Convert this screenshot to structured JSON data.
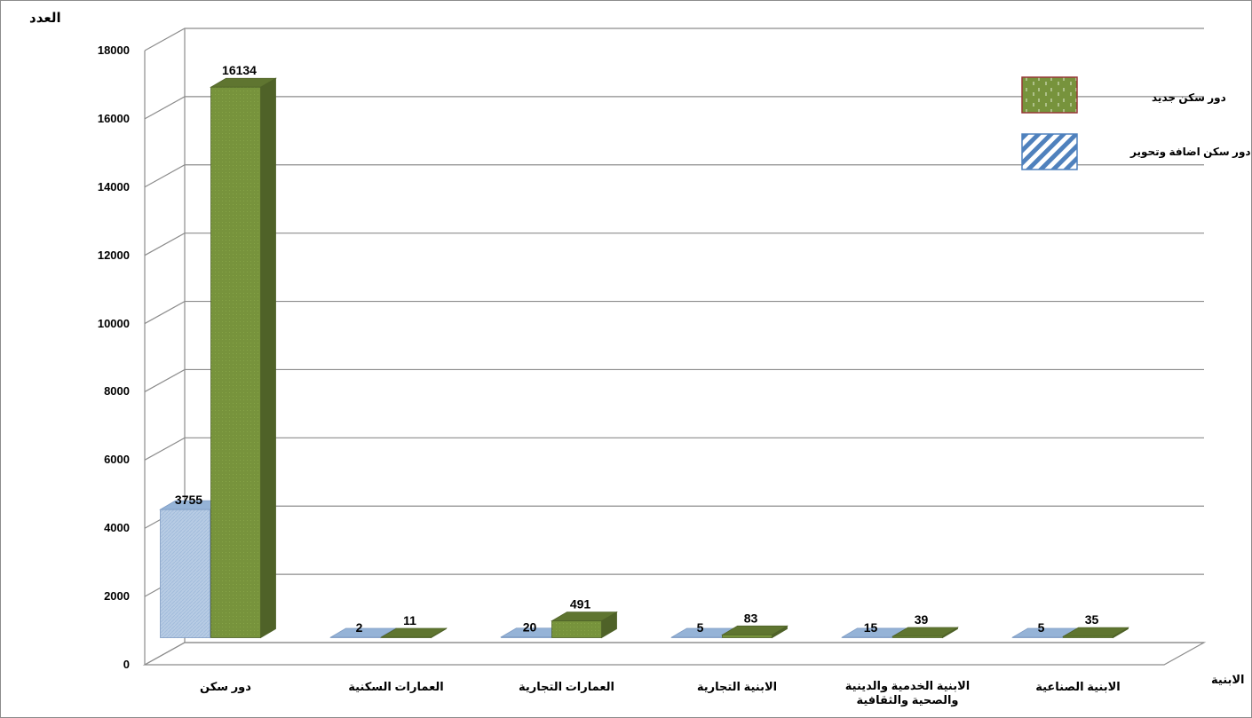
{
  "chart_data": {
    "type": "bar",
    "ylabel": "العدد",
    "xlabel": "الابنية",
    "ylim": [
      0,
      18000
    ],
    "yticks": [
      0,
      2000,
      4000,
      6000,
      8000,
      10000,
      12000,
      14000,
      16000,
      18000
    ],
    "grid": true,
    "legend_position": "top-right",
    "categories": [
      "دور سكن",
      "العمارات السكنية",
      "العمارات التجارية",
      "الابنية التجارية",
      "الابنية الخدمية والدينية والصحية والثقافية",
      "الابنية الصناعية"
    ],
    "series": [
      {
        "name": "دور سكن اضافة وتحوير",
        "values": [
          3755,
          2,
          20,
          5,
          15,
          5
        ],
        "color": "#b8cce4"
      },
      {
        "name": "دور سكن جديد",
        "values": [
          16134,
          11,
          491,
          83,
          39,
          35
        ],
        "color": "#77933c"
      }
    ]
  }
}
